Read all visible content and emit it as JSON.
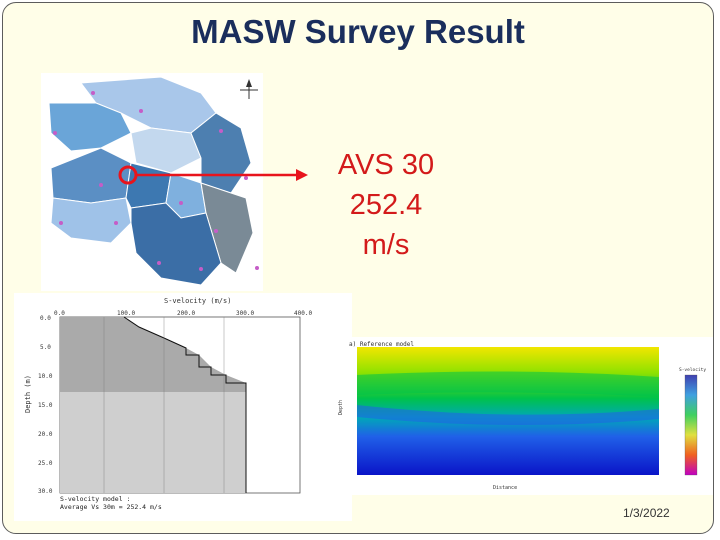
{
  "title": "MASW Survey Result",
  "avs": {
    "line1": "AVS 30",
    "line2": "252.4",
    "line3": "m/s"
  },
  "profile": {
    "title": "S-velocity (m/s)",
    "ylabel": "Depth (m)",
    "x_ticks": [
      "0.0",
      "100.0",
      "200.0",
      "300.0",
      "400.0"
    ],
    "y_ticks": [
      "0.0",
      "5.0",
      "10.0",
      "15.0",
      "20.0",
      "25.0",
      "30.0"
    ],
    "footer1": "S-velocity model :",
    "footer2": "Average Vs 30m = 252.4 m/s"
  },
  "section": {
    "title": "a) Reference model",
    "xlabel": "Distance",
    "ylabel": "Depth",
    "legend_title": "S-velocity"
  },
  "date": "1/3/2022",
  "colors": {
    "title": "#1a2e5c",
    "avs_text": "#d31a1a",
    "arrow": "#e8141c",
    "background": "#fffee8"
  }
}
